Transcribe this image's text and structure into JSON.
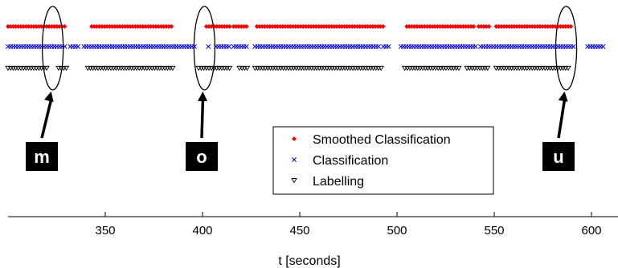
{
  "chart_data": {
    "type": "scatter",
    "xlabel": "t [seconds]",
    "xlim": [
      300,
      606
    ],
    "xticks": [
      350,
      400,
      450,
      500,
      550,
      600
    ],
    "series": [
      {
        "name": "Smoothed Classification",
        "color": "#ff0000",
        "marker": "dot",
        "row": 3,
        "segments": [
          [
            300,
            330
          ],
          [
            343,
            385
          ],
          [
            402,
            414
          ],
          [
            416,
            423
          ],
          [
            428,
            494
          ],
          [
            505,
            540
          ],
          [
            542,
            548
          ],
          [
            551,
            590
          ]
        ]
      },
      {
        "name": "Classification",
        "color": "#0000ff",
        "marker": "x",
        "row": 2,
        "segments": [
          [
            300,
            330
          ],
          [
            332,
            337
          ],
          [
            339,
            397
          ],
          [
            403,
            404
          ],
          [
            407,
            414
          ],
          [
            416,
            423
          ],
          [
            427,
            491
          ],
          [
            493,
            496
          ],
          [
            502,
            541
          ],
          [
            543,
            550
          ],
          [
            551,
            591
          ],
          [
            598,
            606
          ]
        ]
      },
      {
        "name": "Labelling",
        "color": "#000000",
        "marker": "triangle-down",
        "row": 1,
        "segments": [
          [
            300,
            320
          ],
          [
            326,
            331
          ],
          [
            341,
            385
          ],
          [
            398,
            414
          ],
          [
            419,
            423
          ],
          [
            427,
            492
          ],
          [
            504,
            532
          ],
          [
            536,
            547
          ],
          [
            551,
            589
          ]
        ]
      }
    ],
    "legend": {
      "position": "center-right"
    },
    "annotations": [
      {
        "label": "m",
        "x": 323
      },
      {
        "label": "o",
        "x": 401
      },
      {
        "label": "u",
        "x": 587
      }
    ]
  }
}
